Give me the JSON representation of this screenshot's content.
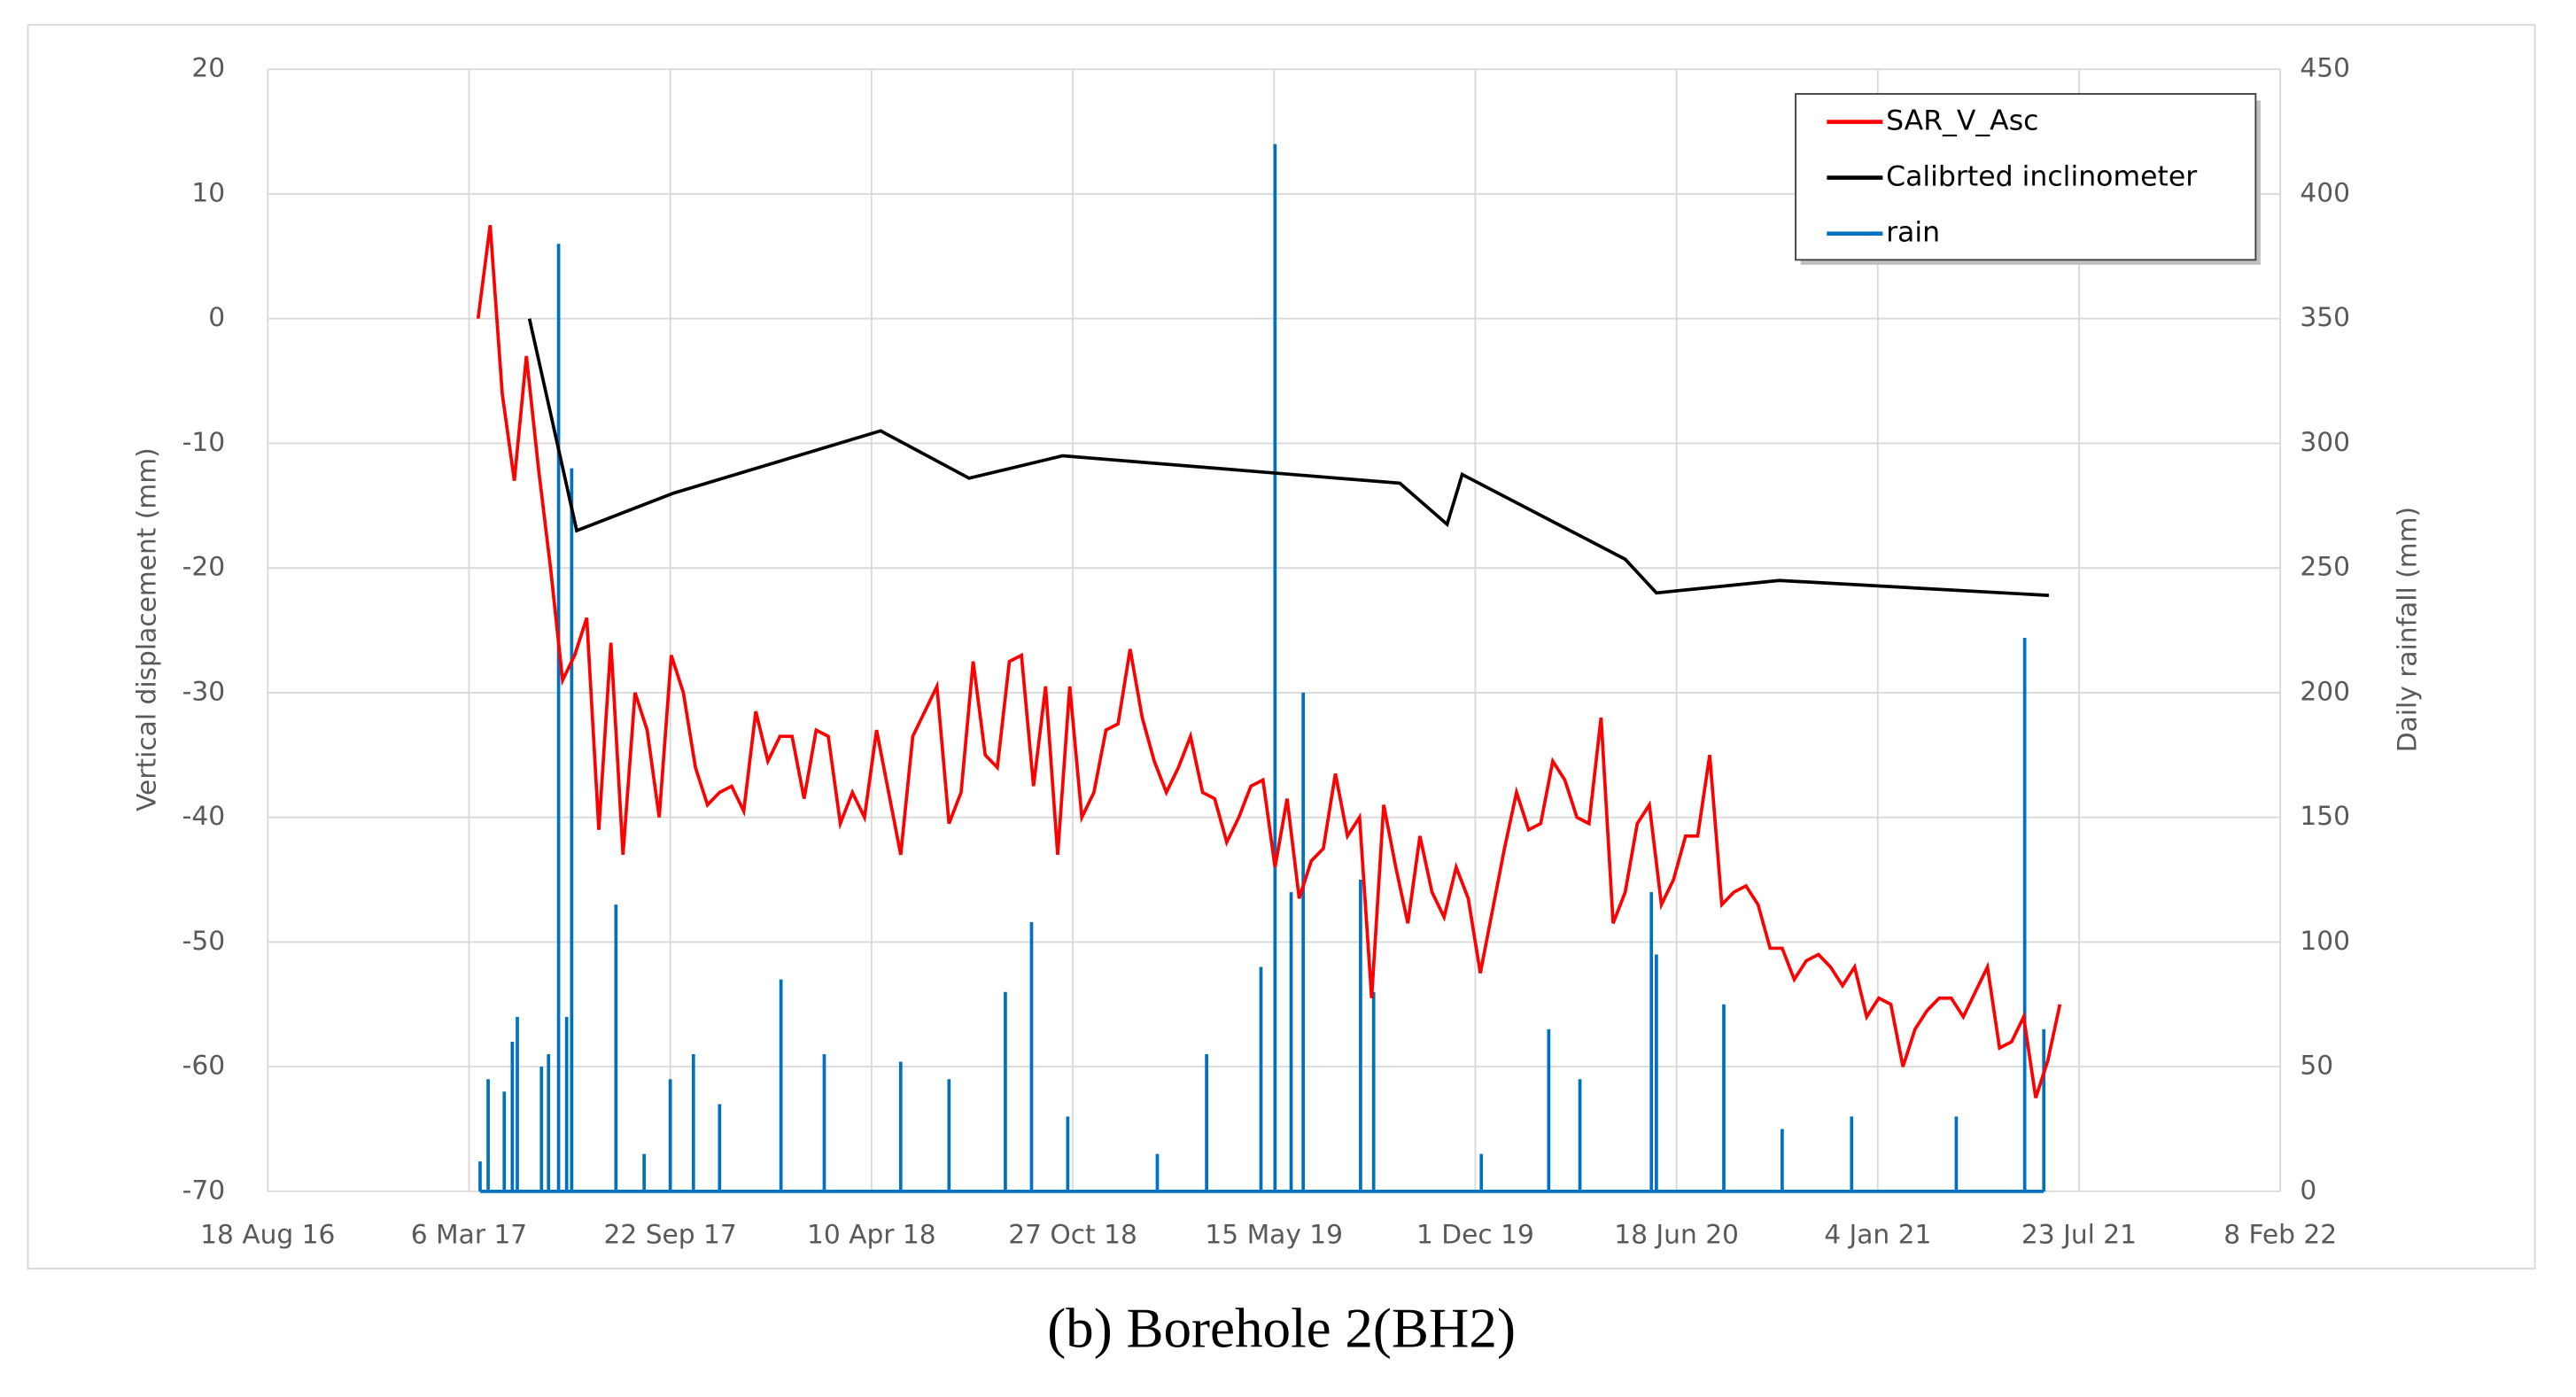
{
  "chart_data": {
    "type": "line",
    "y_label": "Vertical displacement (mm)",
    "y2_label": "Daily rainfall (mm)",
    "caption": "(b) Borehole 2(BH2)",
    "xlim": [
      "2016-08-18",
      "2022-02-08"
    ],
    "xticks": [
      {
        "value": "2016-08-18",
        "label": "18 Aug 16"
      },
      {
        "value": "2017-03-06",
        "label": "6 Mar 17"
      },
      {
        "value": "2017-09-22",
        "label": "22 Sep 17"
      },
      {
        "value": "2018-04-10",
        "label": "10 Apr 18"
      },
      {
        "value": "2018-10-27",
        "label": "27 Oct 18"
      },
      {
        "value": "2019-05-15",
        "label": "15 May 19"
      },
      {
        "value": "2019-12-01",
        "label": "1 Dec 19"
      },
      {
        "value": "2020-06-18",
        "label": "18 Jun 20"
      },
      {
        "value": "2021-01-04",
        "label": "4 Jan 21"
      },
      {
        "value": "2021-07-23",
        "label": "23 Jul 21"
      },
      {
        "value": "2022-02-08",
        "label": "8 Feb 22"
      }
    ],
    "ylim": [
      -70,
      20
    ],
    "yticks": [
      -70,
      -60,
      -50,
      -40,
      -30,
      -20,
      -10,
      0,
      10,
      20
    ],
    "y2lim": [
      0,
      450
    ],
    "y2ticks": [
      0,
      50,
      100,
      150,
      200,
      250,
      300,
      350,
      400,
      450
    ],
    "grid": true,
    "legend": "top-right",
    "series": [
      {
        "name": "SAR_V_Asc",
        "color": "#ff0000",
        "x": [
          "2017-03-15",
          "2017-03-27",
          "2017-04-08",
          "2017-04-20",
          "2017-05-02",
          "2017-05-14",
          "2017-05-26",
          "2017-06-07",
          "2017-06-19",
          "2017-07-01",
          "2017-07-13",
          "2017-07-25",
          "2017-08-06",
          "2017-08-18",
          "2017-08-30",
          "2017-09-11",
          "2017-09-23",
          "2017-10-05",
          "2017-10-17",
          "2017-10-29",
          "2017-11-10",
          "2017-11-22",
          "2017-12-04",
          "2017-12-16",
          "2017-12-28",
          "2018-01-09",
          "2018-01-21",
          "2018-02-02",
          "2018-02-14",
          "2018-02-26",
          "2018-03-10",
          "2018-03-22",
          "2018-04-03",
          "2018-04-15",
          "2018-04-27",
          "2018-05-09",
          "2018-05-21",
          "2018-06-02",
          "2018-06-14",
          "2018-06-26",
          "2018-07-08",
          "2018-07-20",
          "2018-08-01",
          "2018-08-13",
          "2018-08-25",
          "2018-09-06",
          "2018-09-18",
          "2018-09-30",
          "2018-10-12",
          "2018-10-24",
          "2018-11-05",
          "2018-11-17",
          "2018-11-29",
          "2018-12-11",
          "2018-12-23",
          "2019-01-04",
          "2019-01-16",
          "2019-01-28",
          "2019-02-09",
          "2019-02-21",
          "2019-03-05",
          "2019-03-17",
          "2019-03-29",
          "2019-04-10",
          "2019-04-22",
          "2019-05-04",
          "2019-05-16",
          "2019-05-28",
          "2019-06-09",
          "2019-06-21",
          "2019-07-03",
          "2019-07-15",
          "2019-07-27",
          "2019-08-08",
          "2019-08-20",
          "2019-09-01",
          "2019-09-13",
          "2019-09-25",
          "2019-10-07",
          "2019-10-19",
          "2019-10-31",
          "2019-11-12",
          "2019-11-24",
          "2019-12-06",
          "2019-12-18",
          "2019-12-30",
          "2020-01-11",
          "2020-01-23",
          "2020-02-04",
          "2020-02-16",
          "2020-02-28",
          "2020-03-11",
          "2020-03-23",
          "2020-04-04",
          "2020-04-16",
          "2020-04-28",
          "2020-05-10",
          "2020-05-22",
          "2020-06-03",
          "2020-06-15",
          "2020-06-27",
          "2020-07-09",
          "2020-07-21",
          "2020-08-02",
          "2020-08-14",
          "2020-08-26",
          "2020-09-07",
          "2020-09-19",
          "2020-10-01",
          "2020-10-13",
          "2020-10-25",
          "2020-11-06",
          "2020-11-18",
          "2020-11-30",
          "2020-12-12",
          "2020-12-24",
          "2021-01-05",
          "2021-01-17",
          "2021-01-29",
          "2021-02-10",
          "2021-02-22",
          "2021-03-06",
          "2021-03-18",
          "2021-03-30",
          "2021-04-11",
          "2021-04-23",
          "2021-05-05",
          "2021-05-17",
          "2021-05-29",
          "2021-06-10",
          "2021-06-22",
          "2021-07-04"
        ],
        "values": [
          0,
          7.5,
          -6,
          -13,
          -3,
          -12,
          -20,
          -29,
          -27,
          -24,
          -41,
          -26,
          -43,
          -30,
          -33,
          -40,
          -27,
          -30,
          -36,
          -39,
          -38,
          -37.5,
          -39.5,
          -31.5,
          -35.5,
          -33.5,
          -33.5,
          -38.5,
          -33,
          -33.5,
          -40.5,
          -38,
          -40,
          -33,
          -38,
          -43,
          -33.5,
          -31.5,
          -29.5,
          -40.5,
          -38,
          -27.5,
          -35,
          -36,
          -27.5,
          -27,
          -37.5,
          -29.5,
          -43,
          -29.5,
          -40,
          -38,
          -33,
          -32.5,
          -26.5,
          -32,
          -35.5,
          -38,
          -36,
          -33.5,
          -38,
          -38.5,
          -42,
          -40,
          -37.5,
          -37,
          -44,
          -38.5,
          -46.5,
          -43.5,
          -42.5,
          -36.5,
          -41.5,
          -40,
          -54.5,
          -39,
          -44,
          -48.5,
          -41.5,
          -46,
          -48,
          -44,
          -46.5,
          -52.5,
          -47.5,
          -42.5,
          -38,
          -41,
          -40.5,
          -35.5,
          -37,
          -40,
          -40.5,
          -32,
          -48.5,
          -46,
          -40.5,
          -39,
          -47,
          -45,
          -41.5,
          -41.5,
          -35,
          -47,
          -46,
          -45.5,
          -47,
          -50.5,
          -50.5,
          -53,
          -51.5,
          -51,
          -52,
          -53.5,
          -52,
          -56,
          -54.5,
          -55,
          -60,
          -57,
          -55.5,
          -54.5,
          -54.5,
          -56,
          -54,
          -52,
          -58.5,
          -58,
          -56,
          -62.5,
          -59.5,
          -55
        ]
      },
      {
        "name": "Calibrted inclinometer",
        "color": "#000000",
        "x": [
          "2017-05-05",
          "2017-06-21",
          "2017-09-25",
          "2018-04-19",
          "2018-07-16",
          "2018-10-17",
          "2019-09-17",
          "2019-11-03",
          "2019-11-18",
          "2020-04-28",
          "2020-05-29",
          "2020-09-28",
          "2021-06-23"
        ],
        "values": [
          0,
          -17,
          -14,
          -9,
          -12.8,
          -11,
          -13.2,
          -16.5,
          -12.5,
          -19.3,
          -22,
          -21,
          -22.2
        ]
      },
      {
        "name": "rain",
        "color": "#0070c0",
        "axis": "y2",
        "kind": "spikes",
        "x": [
          "2017-03-17",
          "2017-03-25",
          "2017-04-10",
          "2017-04-18",
          "2017-04-23",
          "2017-05-17",
          "2017-05-24",
          "2017-06-03",
          "2017-06-11",
          "2017-06-16",
          "2017-07-30",
          "2017-08-27",
          "2017-09-22",
          "2017-10-15",
          "2017-11-10",
          "2018-01-10",
          "2018-02-22",
          "2018-05-09",
          "2018-06-26",
          "2018-08-21",
          "2018-09-16",
          "2018-10-22",
          "2019-01-19",
          "2019-03-09",
          "2019-05-02",
          "2019-05-16",
          "2019-06-01",
          "2019-06-13",
          "2019-08-09",
          "2019-08-22",
          "2019-12-07",
          "2020-02-12",
          "2020-03-14",
          "2020-05-24",
          "2020-05-29",
          "2020-08-04",
          "2020-10-01",
          "2020-12-09",
          "2021-03-23",
          "2021-05-30",
          "2021-06-18"
        ],
        "values": [
          12,
          45,
          40,
          60,
          70,
          50,
          55,
          380,
          70,
          290,
          115,
          15,
          45,
          55,
          35,
          85,
          55,
          52,
          45,
          80,
          108,
          30,
          15,
          55,
          90,
          420,
          120,
          200,
          125,
          80,
          15,
          65,
          45,
          120,
          95,
          75,
          25,
          30,
          30,
          222,
          65
        ]
      }
    ]
  }
}
